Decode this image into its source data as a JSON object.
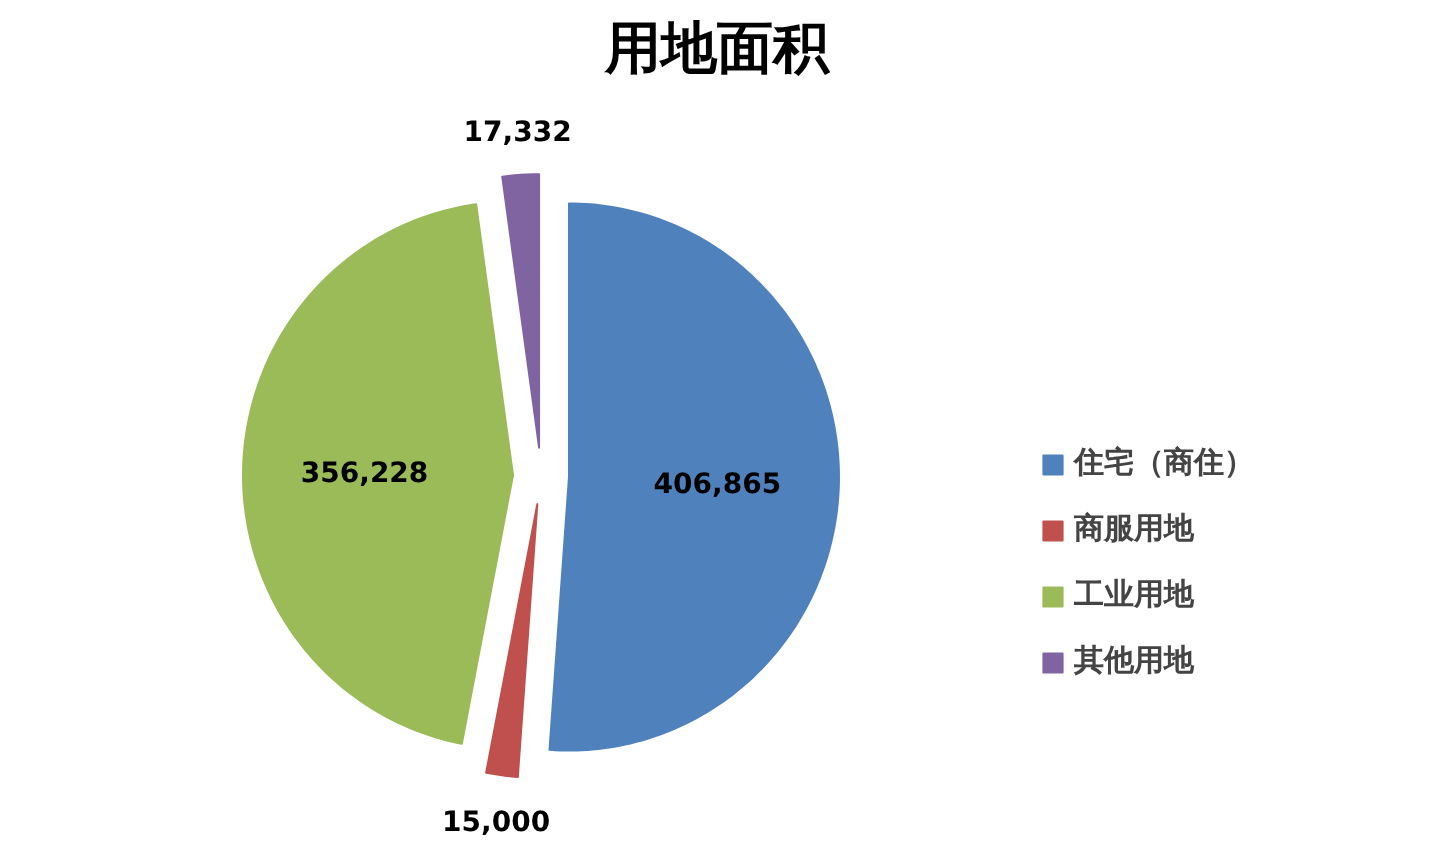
{
  "chart_data": {
    "type": "pie",
    "title": "用地面积",
    "categories": [
      "住宅（商住）",
      "商服用地",
      "工业用地",
      "其他用地"
    ],
    "values": [
      406865,
      15000,
      356228,
      17332
    ],
    "value_labels": [
      "406,865",
      "15,000",
      "356,228",
      "17,332"
    ],
    "colors": [
      "#4f81bd",
      "#c0504d",
      "#9bbb59",
      "#8064a2"
    ],
    "legend": "right"
  }
}
